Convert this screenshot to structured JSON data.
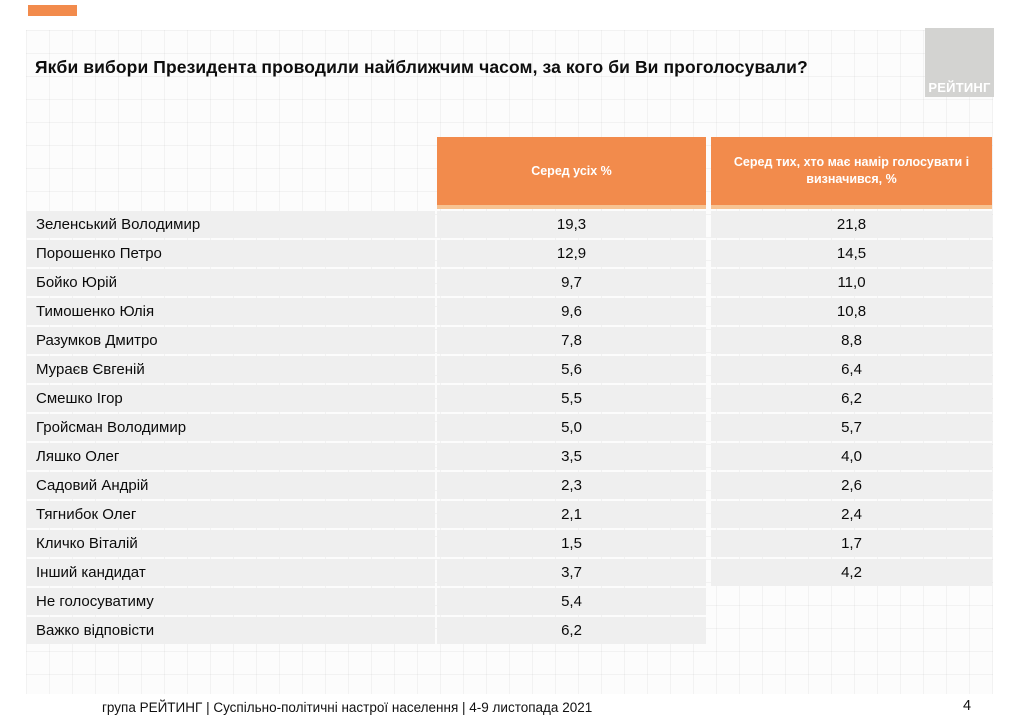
{
  "accent_color": "#F28B4C",
  "title": "Якби вибори Президента проводили найближчим часом, за кого би Ви проголосували?",
  "logo": {
    "text": "РЕЙТИНГ",
    "background": "#D3D3D1"
  },
  "table": {
    "columns": [
      "Серед усіх %",
      "Серед тих, хто має намір голосувати і визначився, %"
    ],
    "header_color": "#F28B4C",
    "row_color": "#EFEFEF",
    "rows": [
      {
        "name": "Зеленський Володимир",
        "all": "19,3",
        "decided": "21,8"
      },
      {
        "name": "Порошенко Петро",
        "all": "12,9",
        "decided": "14,5"
      },
      {
        "name": "Бойко Юрій",
        "all": "9,7",
        "decided": "11,0"
      },
      {
        "name": "Тимошенко Юлія",
        "all": "9,6",
        "decided": "10,8"
      },
      {
        "name": "Разумков Дмитро",
        "all": "7,8",
        "decided": "8,8"
      },
      {
        "name": "Мураєв Євгеній",
        "all": "5,6",
        "decided": "6,4"
      },
      {
        "name": "Смешко Ігор",
        "all": "5,5",
        "decided": "6,2"
      },
      {
        "name": "Гройсман Володимир",
        "all": "5,0",
        "decided": "5,7"
      },
      {
        "name": "Ляшко Олег",
        "all": "3,5",
        "decided": "4,0"
      },
      {
        "name": "Садовий Андрій",
        "all": "2,3",
        "decided": "2,6"
      },
      {
        "name": "Тягнибок Олег",
        "all": "2,1",
        "decided": "2,4"
      },
      {
        "name": "Кличко Віталій",
        "all": "1,5",
        "decided": "1,7"
      },
      {
        "name": "Інший кандидат",
        "all": "3,7",
        "decided": "4,2"
      },
      {
        "name": "Не голосуватиму",
        "all": "5,4",
        "decided": ""
      },
      {
        "name": "Важко відповісти",
        "all": "6,2",
        "decided": ""
      }
    ]
  },
  "footer": {
    "text": "група РЕЙТИНГ | Суспільно-політичні настрої населення  | 4-9 листопада 2021",
    "page": "4"
  }
}
